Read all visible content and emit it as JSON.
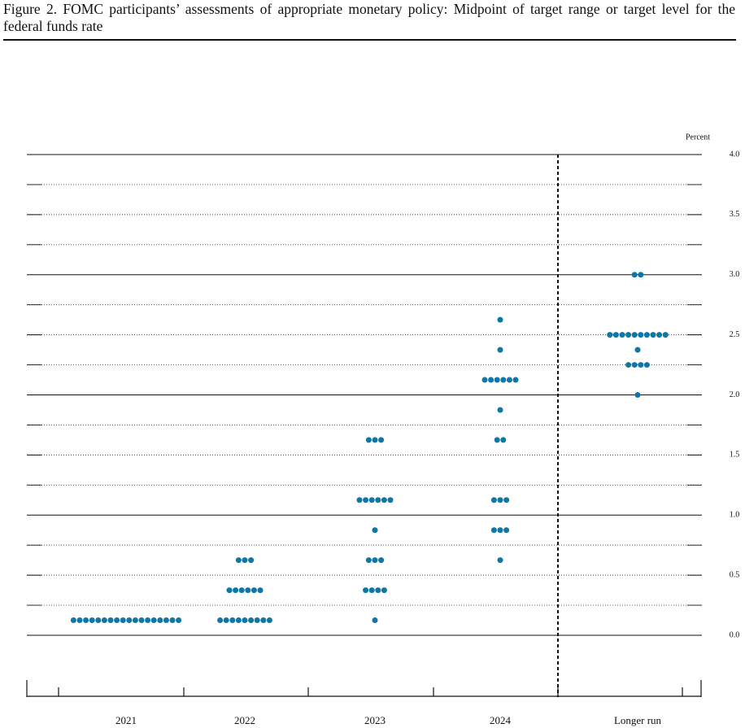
{
  "chart_data": {
    "type": "dot",
    "title": "Figure 2.  FOMC participants’ assessments of appropriate monetary policy: Midpoint of target range or target level for the federal funds rate",
    "y_axis_label": "Percent",
    "color": "#0f76a5",
    "categories": [
      "2021",
      "2022",
      "2023",
      "2024",
      "Longer run"
    ],
    "dots": [
      [
        {
          "value": 0.125,
          "count": 18
        }
      ],
      [
        {
          "value": 0.125,
          "count": 9
        },
        {
          "value": 0.375,
          "count": 6
        },
        {
          "value": 0.625,
          "count": 3
        }
      ],
      [
        {
          "value": 0.125,
          "count": 1
        },
        {
          "value": 0.375,
          "count": 4
        },
        {
          "value": 0.625,
          "count": 3
        },
        {
          "value": 0.875,
          "count": 1
        },
        {
          "value": 1.125,
          "count": 6
        },
        {
          "value": 1.625,
          "count": 3
        }
      ],
      [
        {
          "value": 0.625,
          "count": 1
        },
        {
          "value": 0.875,
          "count": 3
        },
        {
          "value": 1.125,
          "count": 3
        },
        {
          "value": 1.625,
          "count": 2
        },
        {
          "value": 1.875,
          "count": 1
        },
        {
          "value": 2.125,
          "count": 6
        },
        {
          "value": 2.375,
          "count": 1
        },
        {
          "value": 2.625,
          "count": 1
        }
      ],
      [
        {
          "value": 2.0,
          "count": 1
        },
        {
          "value": 2.25,
          "count": 4
        },
        {
          "value": 2.375,
          "count": 1
        },
        {
          "value": 2.5,
          "count": 10
        },
        {
          "value": 3.0,
          "count": 2
        }
      ]
    ],
    "ylim": [
      0,
      4
    ],
    "yticks": [
      {
        "value": 0,
        "label": "0.0"
      },
      {
        "value": 0.5,
        "label": "0.5"
      },
      {
        "value": 1,
        "label": "1.0"
      },
      {
        "value": 1.5,
        "label": "1.5"
      },
      {
        "value": 2,
        "label": "2.0"
      },
      {
        "value": 2.5,
        "label": "2.5"
      },
      {
        "value": 3,
        "label": "3.0"
      },
      {
        "value": 3.5,
        "label": "3.5"
      },
      {
        "value": 4,
        "label": "4.0"
      }
    ],
    "grid": true
  }
}
